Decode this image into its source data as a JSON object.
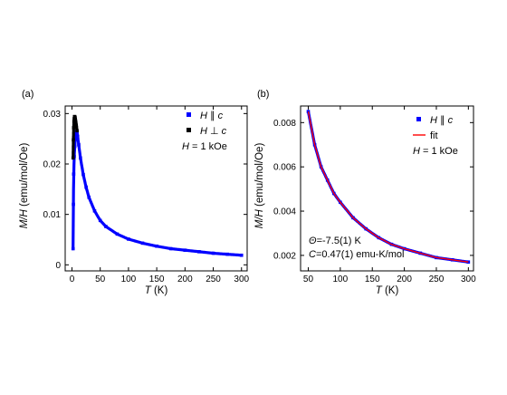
{
  "chart_data": [
    {
      "type": "scatter",
      "panel_label": "(a)",
      "xlabel": {
        "var": "T",
        "unit": " (K)"
      },
      "ylabel": {
        "var": "M/H",
        "unit": " (emu/mol/Oe)"
      },
      "xlim": [
        -12,
        310
      ],
      "ylim": [
        -0.0012,
        0.0315
      ],
      "xticks": [
        0,
        50,
        100,
        150,
        200,
        250,
        300
      ],
      "yticks": [
        0,
        0.01,
        0.02,
        0.03
      ],
      "ytick_labels": [
        "0",
        "0.01",
        "0.02",
        "0.03"
      ],
      "legend_position": "top-right",
      "series": [
        {
          "name": "H ∥ c",
          "name_parts": {
            "var": "H",
            "rel": " ∥ ",
            "axis": "c"
          },
          "color": "#0000ff",
          "x": [
            2,
            2.5,
            3,
            4,
            5,
            6,
            7,
            8,
            9,
            10,
            12,
            15,
            20,
            25,
            30,
            40,
            50,
            60,
            80,
            100,
            125,
            150,
            175,
            200,
            225,
            250,
            275,
            300
          ],
          "y": [
            0.0032,
            0.012,
            0.018,
            0.0215,
            0.0235,
            0.025,
            0.026,
            0.0265,
            0.0262,
            0.0255,
            0.0238,
            0.0212,
            0.0179,
            0.0154,
            0.0134,
            0.0107,
            0.0088,
            0.0076,
            0.0061,
            0.0051,
            0.0043,
            0.0037,
            0.0032,
            0.0029,
            0.0026,
            0.0023,
            0.0021,
            0.0019
          ]
        },
        {
          "name": "H ⊥ c",
          "name_parts": {
            "var": "H",
            "rel": " ⊥ ",
            "axis": "c"
          },
          "color": "#000000",
          "x": [
            2,
            2.5,
            3,
            3.5,
            4,
            4.5,
            5,
            5.5,
            6,
            6.5,
            7,
            7.5,
            8,
            9
          ],
          "y": [
            0.0212,
            0.0248,
            0.0272,
            0.0284,
            0.029,
            0.0294,
            0.0294,
            0.0292,
            0.0289,
            0.0285,
            0.0281,
            0.0277,
            0.0273,
            0.0266
          ]
        }
      ],
      "annotations": [
        {
          "var": "H",
          "text": " = 1 kOe"
        }
      ]
    },
    {
      "type": "scatter",
      "panel_label": "(b)",
      "xlabel": {
        "var": "T",
        "unit": " (K)"
      },
      "ylabel": {
        "var": "M/H",
        "unit": " (emu/mol/Oe)"
      },
      "xlim": [
        38,
        308
      ],
      "ylim": [
        0.0013,
        0.00875
      ],
      "xticks": [
        50,
        100,
        150,
        200,
        250,
        300
      ],
      "yticks": [
        0.002,
        0.004,
        0.006,
        0.008
      ],
      "ytick_labels": [
        "0.002",
        "0.004",
        "0.006",
        "0.008"
      ],
      "legend_position": "top-right",
      "series": [
        {
          "name": "H ∥ c",
          "name_parts": {
            "var": "H",
            "rel": " ∥ ",
            "axis": "c"
          },
          "color": "#0000ff",
          "x": [
            50,
            60,
            70,
            80,
            90,
            100,
            120,
            140,
            160,
            180,
            200,
            225,
            250,
            275,
            300
          ],
          "y": [
            0.0085,
            0.007,
            0.006,
            0.0054,
            0.0048,
            0.0044,
            0.0037,
            0.0032,
            0.0028,
            0.0025,
            0.0023,
            0.0021,
            0.0019,
            0.0018,
            0.0017
          ]
        },
        {
          "name": "fit",
          "color": "#ff0000",
          "line": true,
          "x": [
            50,
            60,
            70,
            80,
            90,
            100,
            120,
            140,
            160,
            180,
            200,
            225,
            250,
            275,
            300
          ],
          "y": [
            0.0085,
            0.007,
            0.006,
            0.0054,
            0.0048,
            0.0044,
            0.0037,
            0.0032,
            0.0028,
            0.0025,
            0.0023,
            0.0021,
            0.0019,
            0.0018,
            0.0017
          ]
        }
      ],
      "annotations": [
        {
          "var": "H",
          "text": " = 1 kOe"
        },
        {
          "var": "Θ",
          "text": "=-7.5(1) K"
        },
        {
          "var": "C",
          "text": "=0.47(1) emu-K/mol"
        }
      ]
    }
  ]
}
